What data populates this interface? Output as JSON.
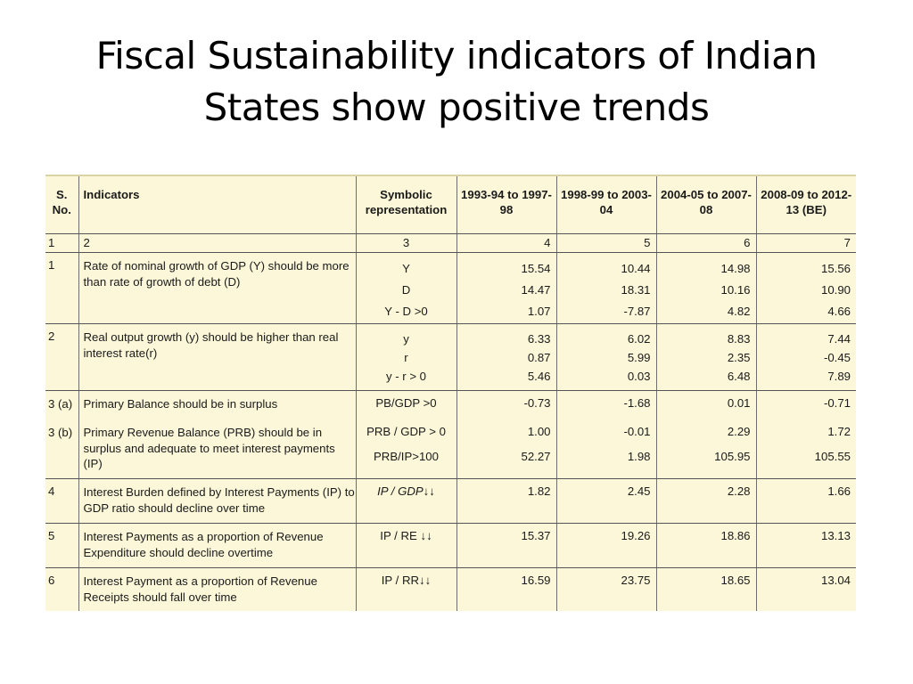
{
  "title": {
    "line1": "Fiscal Sustainability indicators of Indian",
    "line2": "States show positive trends"
  },
  "table": {
    "headers": {
      "sno": "S. No.",
      "indicators": "Indicators",
      "symbolic": "Symbolic representation",
      "p1": "1993-94 to 1997-98",
      "p2": "1998-99 to 2003-04",
      "p3": "2004-05 to 2007-08",
      "p4": "2008-09 to 2012-13 (BE)"
    },
    "column_numbers": [
      "1",
      "2",
      "3",
      "4",
      "5",
      "6",
      "7"
    ],
    "rows": [
      {
        "sno": "1",
        "indicator": "Rate of nominal growth of GDP (Y) should be more than rate of growth of debt (D)",
        "symbols": [
          "Y",
          "D",
          "Y - D >0"
        ],
        "p1": [
          "15.54",
          "14.47",
          "1.07"
        ],
        "p2": [
          "10.44",
          "18.31",
          "-7.87"
        ],
        "p3": [
          "14.98",
          "10.16",
          "4.82"
        ],
        "p4": [
          "15.56",
          "10.90",
          "4.66"
        ]
      },
      {
        "sno": "2",
        "indicator": "Real output growth (y) should be higher than real interest rate(r)",
        "symbols": [
          "y",
          "r",
          "y - r > 0"
        ],
        "p1": [
          "6.33",
          "0.87",
          "5.46"
        ],
        "p2": [
          "6.02",
          "5.99",
          "0.03"
        ],
        "p3": [
          "8.83",
          "2.35",
          "6.48"
        ],
        "p4": [
          "7.44",
          "-0.45",
          "7.89"
        ]
      },
      {
        "sno_a": "3 (a)",
        "indicator_a": "Primary Balance should be in surplus",
        "sno_b": "3 (b)",
        "indicator_b": "Primary Revenue Balance (PRB) should be in surplus and adequate to meet interest payments (IP)",
        "symbols": [
          "PB/GDP >0",
          "PRB / GDP > 0",
          "PRB/IP>100"
        ],
        "p1": [
          "-0.73",
          "1.00",
          "52.27"
        ],
        "p2": [
          "-1.68",
          "-0.01",
          "1.98"
        ],
        "p3": [
          "0.01",
          "2.29",
          "105.95"
        ],
        "p4": [
          "-0.71",
          "1.72",
          "105.55"
        ]
      },
      {
        "sno": "4",
        "indicator": "Interest Burden defined by Interest Payments (IP) to GDP ratio should decline over time",
        "symbol": "IP / GDP↓↓",
        "values": [
          "1.82",
          "2.45",
          "2.28",
          "1.66"
        ]
      },
      {
        "sno": "5",
        "indicator": "Interest Payments as a proportion of Revenue Expenditure should decline overtime",
        "symbol": "IP / RE ↓↓",
        "values": [
          "15.37",
          "19.26",
          "18.86",
          "13.13"
        ]
      },
      {
        "sno": "6",
        "indicator": "Interest Payment as a proportion of Revenue Receipts should fall over time",
        "symbol": "IP / RR↓↓",
        "values": [
          "16.59",
          "23.75",
          "18.65",
          "13.04"
        ]
      }
    ]
  }
}
